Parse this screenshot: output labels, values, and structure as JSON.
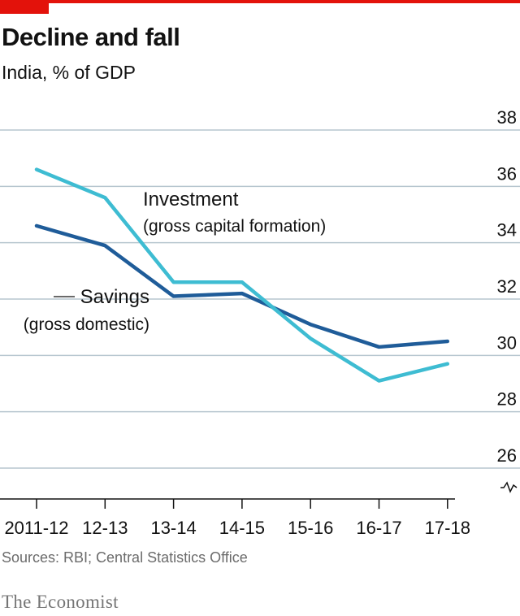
{
  "title": "Decline and fall",
  "subtitle": "India, % of GDP",
  "source": "Sources: RBI; Central Statistics Office",
  "brand": "The Economist",
  "colors": {
    "investment": "#3ebcd2",
    "savings": "#1f5c99",
    "accent": "#e3120b"
  },
  "chart_data": {
    "type": "line",
    "categories": [
      "2011-12",
      "12-13",
      "13-14",
      "14-15",
      "15-16",
      "16-17",
      "17-18"
    ],
    "series": [
      {
        "name": "Investment",
        "sublabel": "(gross capital formation)",
        "values": [
          36.6,
          35.6,
          32.6,
          32.6,
          30.6,
          29.1,
          29.7
        ]
      },
      {
        "name": "Savings",
        "sublabel": "(gross domestic)",
        "values": [
          34.6,
          33.9,
          32.1,
          32.2,
          31.1,
          30.3,
          30.5
        ]
      }
    ],
    "ylim": [
      25,
      38
    ],
    "yticks": [
      "38",
      "36",
      "34",
      "32",
      "30",
      "28",
      "26"
    ],
    "axis_break": true,
    "grid": true
  }
}
